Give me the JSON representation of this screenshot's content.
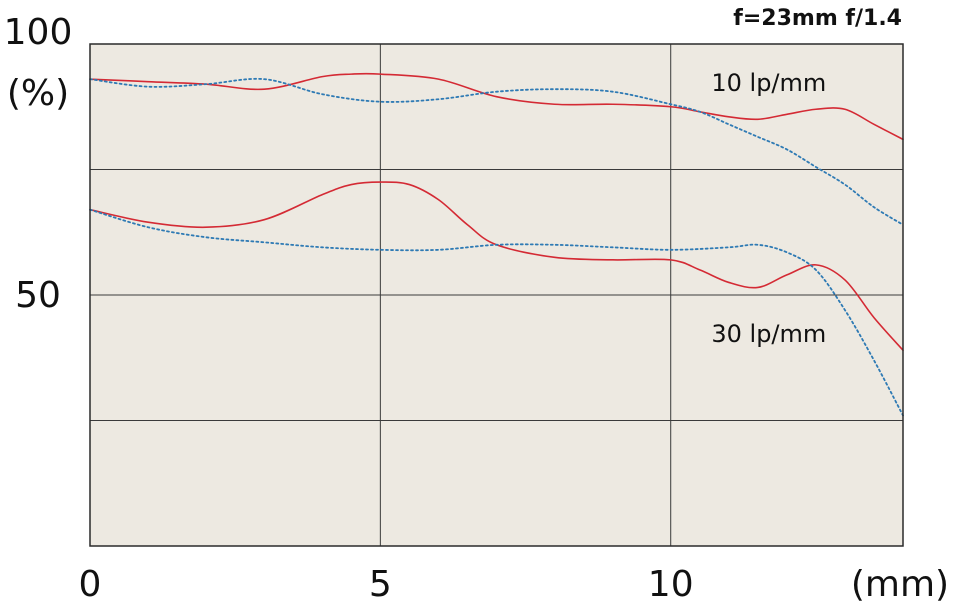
{
  "chart_data": {
    "type": "line",
    "title": "f=23mm f/1.4",
    "xlabel": "(mm)",
    "ylabel": "(%)",
    "xlim": [
      0,
      14
    ],
    "ylim": [
      0,
      100
    ],
    "x_ticks": [
      {
        "value": 0,
        "label": "0"
      },
      {
        "value": 5,
        "label": "5"
      },
      {
        "value": 10,
        "label": "10"
      }
    ],
    "y_ticks": [
      {
        "value": 100,
        "label": "100"
      },
      {
        "value": 50,
        "label": "50"
      }
    ],
    "x_gridlines": [
      5,
      10
    ],
    "y_gridlines": [
      25,
      50,
      75
    ],
    "grid": true,
    "plot_background": "#ede9e1",
    "annotations": [
      {
        "text": "10 lp/mm",
        "x": 10.7,
        "y": 92
      },
      {
        "text": "30 lp/mm",
        "x": 10.7,
        "y": 42
      }
    ],
    "series": [
      {
        "color": "#d42a34",
        "style": "solid",
        "group": "10 lp/mm",
        "x": [
          0,
          1,
          2,
          3,
          4,
          4.5,
          5,
          6,
          7,
          8,
          9,
          10,
          10.5,
          11,
          11.5,
          12,
          12.5,
          13,
          13.5,
          14
        ],
        "y": [
          93,
          92.5,
          92,
          91,
          93.5,
          94,
          94,
          93,
          89.5,
          88,
          88,
          87.5,
          86.5,
          85.5,
          85,
          86,
          87,
          87,
          84,
          81
        ]
      },
      {
        "color": "#2e7ab4",
        "style": "dotted",
        "group": "10 lp/mm",
        "x": [
          0,
          1,
          2,
          3,
          4,
          5,
          6,
          7,
          8,
          9,
          10,
          10.5,
          11,
          11.5,
          12,
          12.5,
          13,
          13.5,
          14
        ],
        "y": [
          93,
          91.5,
          92,
          93,
          90,
          88.5,
          89,
          90.5,
          91,
          90.5,
          88,
          86.5,
          84,
          81.5,
          79,
          75.5,
          72,
          67.5,
          64
        ]
      },
      {
        "color": "#d42a34",
        "style": "solid",
        "group": "30 lp/mm",
        "x": [
          0,
          1,
          2,
          3,
          4,
          4.5,
          5,
          5.5,
          6,
          6.5,
          7,
          8,
          9,
          10,
          10.5,
          11,
          11.5,
          12,
          12.5,
          13,
          13.5,
          14
        ],
        "y": [
          67,
          64.5,
          63.5,
          65,
          70,
          72,
          72.5,
          72,
          69,
          64,
          60,
          57.5,
          57,
          57,
          55,
          52.5,
          51.5,
          54,
          56,
          53,
          45.5,
          39
        ]
      },
      {
        "color": "#2e7ab4",
        "style": "dotted",
        "group": "30 lp/mm",
        "x": [
          0,
          1,
          2,
          3,
          4,
          5,
          6,
          7,
          8,
          9,
          10,
          11,
          11.5,
          12,
          12.5,
          13,
          13.5,
          14
        ],
        "y": [
          67,
          63.5,
          61.5,
          60.5,
          59.5,
          59,
          59,
          60,
          60,
          59.5,
          59,
          59.5,
          60,
          58.5,
          55,
          47,
          37,
          26
        ]
      }
    ]
  }
}
